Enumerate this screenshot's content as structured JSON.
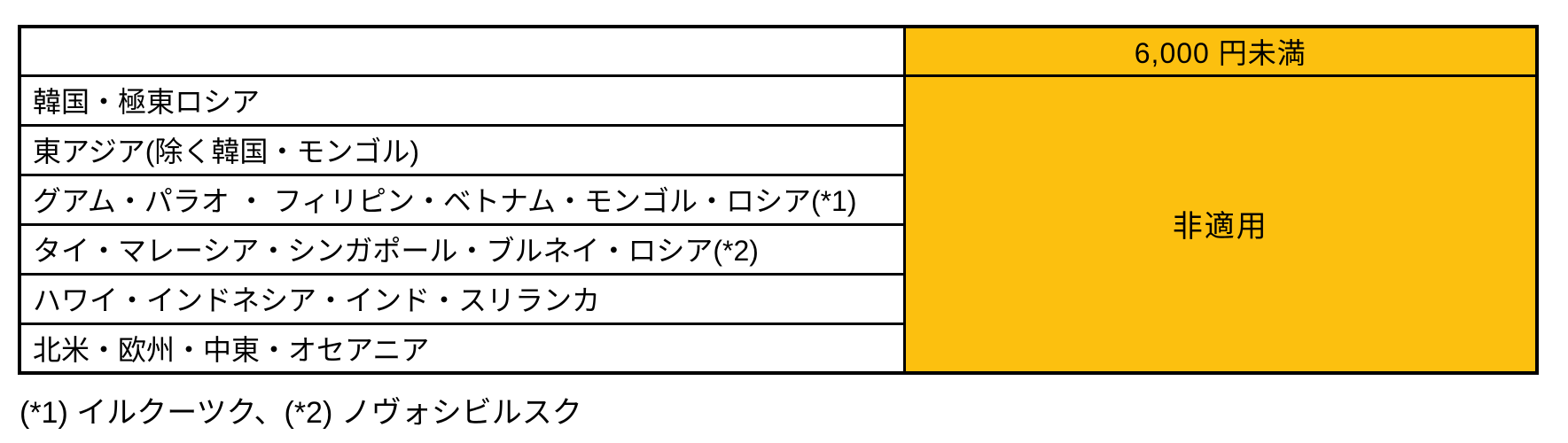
{
  "table": {
    "price_band_header": "6,000 円未満",
    "merged_value": "非適用",
    "rows": [
      {
        "region": "韓国・極東ロシア"
      },
      {
        "region": "東アジア(除く韓国・モンゴル)"
      },
      {
        "region": "グアム・パラオ ・ フィリピン・ベトナム・モンゴル・ロシア(*1)"
      },
      {
        "region": "タイ・マレーシア・シンガポール・ブルネイ・ロシア(*2)"
      },
      {
        "region": "ハワイ・インドネシア・インド・スリランカ"
      },
      {
        "region": "北米・欧州・中東・オセアニア"
      }
    ]
  },
  "footnote": "(*1) イルクーツク、(*2) ノヴォシビルスク",
  "colors": {
    "highlight": "#FCC00F",
    "border": "#000000",
    "text": "#000000",
    "background": "#FFFFFF"
  }
}
